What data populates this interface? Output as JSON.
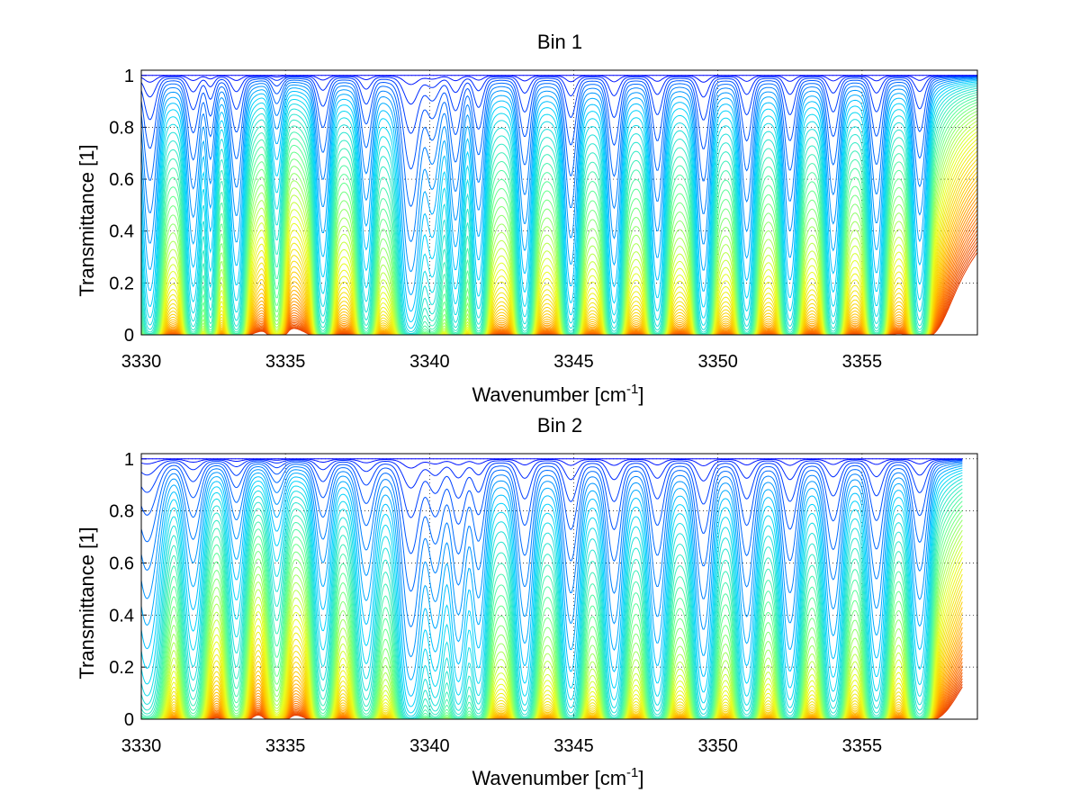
{
  "chart_data": [
    {
      "type": "line",
      "title": "Bin 1",
      "xlabel": "Wavenumber [cm",
      "xlabel_sup": "-1",
      "xlabel_end": "]",
      "ylabel": "Transmittance [1]",
      "xlim": [
        3330,
        3359
      ],
      "ylim": [
        0,
        1.02
      ],
      "xticks": [
        "3330",
        "3335",
        "3340",
        "3345",
        "3350",
        "3355"
      ],
      "yticks": [
        "0",
        "0.2",
        "0.4",
        "0.6",
        "0.8",
        "1"
      ],
      "grid": true,
      "colormap": [
        "#0000ff",
        "#00d2ff",
        "#60ff90",
        "#e8ff20",
        "#ffc800",
        "#ff7800",
        "#e84000"
      ],
      "num_series": 60,
      "absorption_lines": [
        {
          "wn": 3330.3,
          "depth": 0.75,
          "width": 0.18
        },
        {
          "wn": 3331.8,
          "depth": 0.55,
          "width": 0.16
        },
        {
          "wn": 3332.4,
          "depth": 0.35,
          "width": 0.12
        },
        {
          "wn": 3333.3,
          "depth": 0.55,
          "width": 0.16
        },
        {
          "wn": 3334.7,
          "depth": 0.15,
          "width": 0.15
        },
        {
          "wn": 3336.3,
          "depth": 0.5,
          "width": 0.16
        },
        {
          "wn": 3337.8,
          "depth": 0.45,
          "width": 0.16
        },
        {
          "wn": 3339.35,
          "depth": 1.0,
          "width": 0.22
        },
        {
          "wn": 3340.1,
          "depth": 0.35,
          "width": 0.2
        },
        {
          "wn": 3340.9,
          "depth": 0.55,
          "width": 0.16
        },
        {
          "wn": 3341.7,
          "depth": 0.5,
          "width": 0.15
        },
        {
          "wn": 3343.3,
          "depth": 0.6,
          "width": 0.16
        },
        {
          "wn": 3344.9,
          "depth": 0.7,
          "width": 0.16
        },
        {
          "wn": 3346.4,
          "depth": 0.7,
          "width": 0.16
        },
        {
          "wn": 3347.9,
          "depth": 0.65,
          "width": 0.16
        },
        {
          "wn": 3349.5,
          "depth": 0.75,
          "width": 0.16
        },
        {
          "wn": 3351.0,
          "depth": 0.65,
          "width": 0.16
        },
        {
          "wn": 3352.5,
          "depth": 0.65,
          "width": 0.16
        },
        {
          "wn": 3354.0,
          "depth": 0.6,
          "width": 0.16
        },
        {
          "wn": 3355.5,
          "depth": 0.6,
          "width": 0.16
        },
        {
          "wn": 3357.0,
          "depth": 0.55,
          "width": 0.16
        }
      ]
    },
    {
      "type": "line",
      "title": "Bin 2",
      "xlabel": "Wavenumber [cm",
      "xlabel_sup": "-1",
      "xlabel_end": "]",
      "ylabel": "Transmittance [1]",
      "xlim": [
        3330,
        3359
      ],
      "ylim": [
        0,
        1.02
      ],
      "xticks": [
        "3330",
        "3335",
        "3340",
        "3345",
        "3350",
        "3355"
      ],
      "yticks": [
        "0",
        "0.2",
        "0.4",
        "0.6",
        "0.8",
        "1"
      ],
      "grid": true,
      "colormap": [
        "#0000ff",
        "#00d2ff",
        "#60ff90",
        "#e8ff20",
        "#ffc800",
        "#ff7800",
        "#e84000"
      ],
      "num_series": 60,
      "absorption_lines": [
        {
          "wn": 3330.2,
          "depth": 0.55,
          "width": 0.3
        },
        {
          "wn": 3331.8,
          "depth": 0.35,
          "width": 0.22
        },
        {
          "wn": 3333.3,
          "depth": 0.25,
          "width": 0.2
        },
        {
          "wn": 3334.7,
          "depth": 0.12,
          "width": 0.2
        },
        {
          "wn": 3336.3,
          "depth": 0.35,
          "width": 0.2
        },
        {
          "wn": 3337.8,
          "depth": 0.4,
          "width": 0.22
        },
        {
          "wn": 3339.35,
          "depth": 1.0,
          "width": 0.24
        },
        {
          "wn": 3340.2,
          "depth": 0.5,
          "width": 0.22
        },
        {
          "wn": 3341.0,
          "depth": 0.6,
          "width": 0.2
        },
        {
          "wn": 3341.7,
          "depth": 0.5,
          "width": 0.18
        },
        {
          "wn": 3343.3,
          "depth": 0.65,
          "width": 0.2
        },
        {
          "wn": 3344.9,
          "depth": 0.7,
          "width": 0.2
        },
        {
          "wn": 3346.4,
          "depth": 0.7,
          "width": 0.2
        },
        {
          "wn": 3347.9,
          "depth": 0.65,
          "width": 0.2
        },
        {
          "wn": 3349.5,
          "depth": 0.75,
          "width": 0.2
        },
        {
          "wn": 3351.0,
          "depth": 0.65,
          "width": 0.2
        },
        {
          "wn": 3352.5,
          "depth": 0.7,
          "width": 0.2
        },
        {
          "wn": 3354.0,
          "depth": 0.6,
          "width": 0.2
        },
        {
          "wn": 3355.5,
          "depth": 0.6,
          "width": 0.2
        },
        {
          "wn": 3357.0,
          "depth": 0.55,
          "width": 0.2
        }
      ]
    }
  ]
}
